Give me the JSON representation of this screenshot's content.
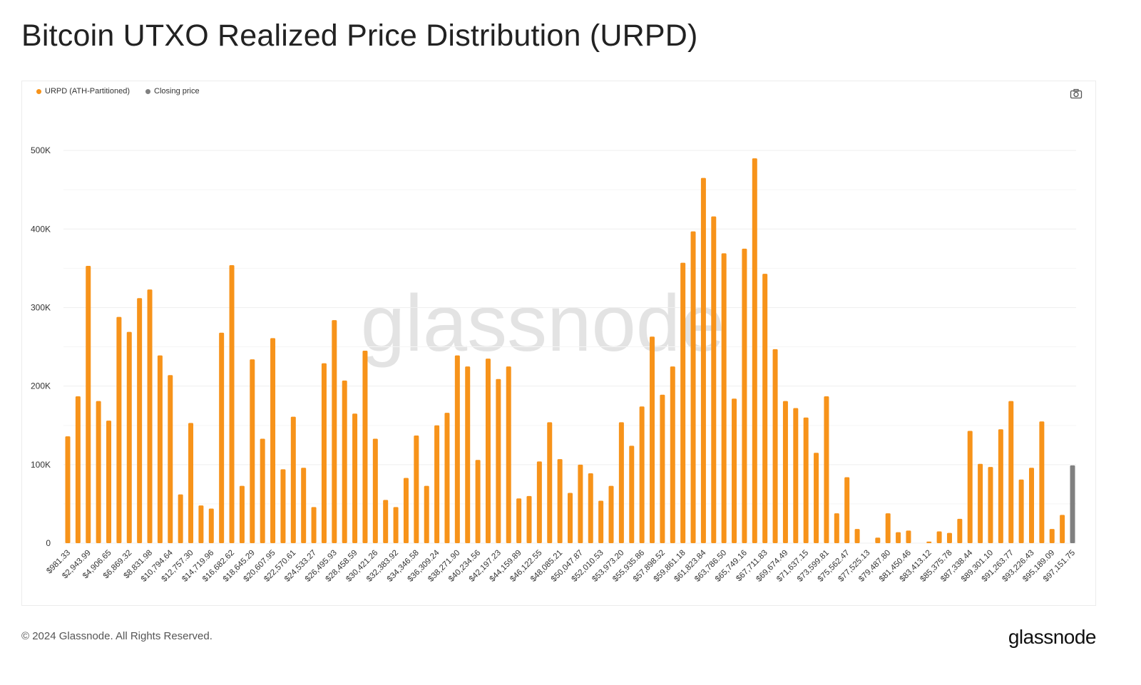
{
  "header": {
    "title": "Bitcoin UTXO Realized Price Distribution (URPD)"
  },
  "legend": {
    "items": [
      {
        "label": "URPD (ATH-Partitioned)",
        "color": "#f7931a"
      },
      {
        "label": "Closing price",
        "color": "#808080"
      }
    ]
  },
  "toolbar": {
    "camera_icon": "camera-icon"
  },
  "watermark": {
    "text": "glassnode"
  },
  "footer": {
    "copyright": "© 2024 Glassnode. All Rights Reserved.",
    "logo": "glassnode"
  },
  "chart_data": {
    "type": "bar",
    "title": "Bitcoin UTXO Realized Price Distribution (URPD)",
    "xlabel": "",
    "ylabel": "",
    "ylim": [
      0,
      550000
    ],
    "y_ticks": [
      0,
      100000,
      200000,
      300000,
      400000,
      500000
    ],
    "y_tick_labels": [
      "0",
      "100K",
      "200K",
      "300K",
      "400K",
      "500K"
    ],
    "grid": true,
    "legend_position": "top-left",
    "colors": {
      "urpd": "#f7931a",
      "closing": "#808080",
      "grid": "#efefef"
    },
    "x_tick_labels": [
      "$981.33",
      "$2,943.99",
      "$4,906.65",
      "$6,869.32",
      "$8,831.98",
      "$10,794.64",
      "$12,757.30",
      "$14,719.96",
      "$16,682.62",
      "$18,645.29",
      "$20,607.95",
      "$22,570.61",
      "$24,533.27",
      "$26,495.93",
      "$28,458.59",
      "$30,421.26",
      "$32,383.92",
      "$34,346.58",
      "$36,309.24",
      "$38,271.90",
      "$40,234.56",
      "$42,197.23",
      "$44,159.89",
      "$46,122.55",
      "$48,085.21",
      "$50,047.87",
      "$52,010.53",
      "$53,973.20",
      "$55,935.86",
      "$57,898.52",
      "$59,861.18",
      "$61,823.84",
      "$63,786.50",
      "$65,749.16",
      "$67,711.83",
      "$69,674.49",
      "$71,637.15",
      "$73,599.81",
      "$75,562.47",
      "$77,525.13",
      "$79,487.80",
      "$81,450.46",
      "$83,413.12",
      "$85,375.78",
      "$87,338.44",
      "$89,301.10",
      "$91,263.77",
      "$93,226.43",
      "$95,189.09",
      "$97,151.75"
    ],
    "series": [
      {
        "name": "URPD (ATH-Partitioned)",
        "values": [
          136000,
          187000,
          353000,
          181000,
          156000,
          288000,
          269000,
          312000,
          323000,
          239000,
          214000,
          62000,
          153000,
          48000,
          44000,
          268000,
          354000,
          73000,
          234000,
          133000,
          261000,
          94000,
          161000,
          96000,
          46000,
          229000,
          284000,
          207000,
          165000,
          245000,
          133000,
          55000,
          46000,
          83000,
          137000,
          73000,
          150000,
          166000,
          239000,
          225000,
          106000,
          235000,
          209000,
          225000,
          57000,
          60000,
          104000,
          154000,
          107000,
          64000,
          100000,
          89000,
          54000,
          73000,
          154000,
          124000,
          174000,
          263000,
          189000,
          225000,
          357000,
          397000,
          465000,
          416000,
          369000,
          184000,
          375000,
          490000,
          343000,
          247000,
          181000,
          172000,
          160000,
          115000,
          187000,
          38000,
          84000,
          18000,
          0,
          7000,
          38000,
          14000,
          16000,
          0,
          2000,
          15000,
          13000,
          31000,
          143000,
          101000,
          97000,
          145000,
          181000,
          81000,
          96000,
          155000,
          18000,
          36000
        ]
      },
      {
        "name": "Closing price",
        "values": [
          99000
        ]
      }
    ]
  }
}
